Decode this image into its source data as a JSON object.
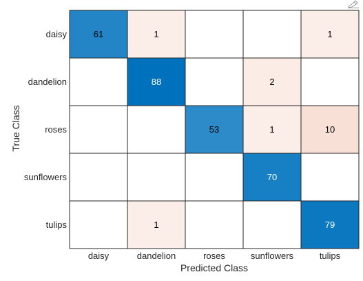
{
  "chart_data": {
    "type": "heatmap",
    "title": "",
    "xlabel": "Predicted Class",
    "ylabel": "True Class",
    "x_categories": [
      "daisy",
      "dandelion",
      "roses",
      "sunflowers",
      "tulips"
    ],
    "y_categories": [
      "daisy",
      "dandelion",
      "roses",
      "sunflowers",
      "tulips"
    ],
    "values": [
      [
        61,
        1,
        0,
        0,
        1
      ],
      [
        0,
        88,
        0,
        2,
        0
      ],
      [
        0,
        0,
        53,
        1,
        10
      ],
      [
        0,
        0,
        0,
        70,
        0
      ],
      [
        0,
        1,
        0,
        0,
        79
      ]
    ],
    "colors": {
      "correct_max": "#0072bd",
      "correct_min": "#ffffff",
      "error_max": "#d95319",
      "error_min": "#ffffff",
      "grid": "#262626",
      "text_dark": "#000000",
      "text_light": "#ffffff"
    }
  },
  "toolbar": {
    "icon": "axes-toolbar-icon"
  }
}
